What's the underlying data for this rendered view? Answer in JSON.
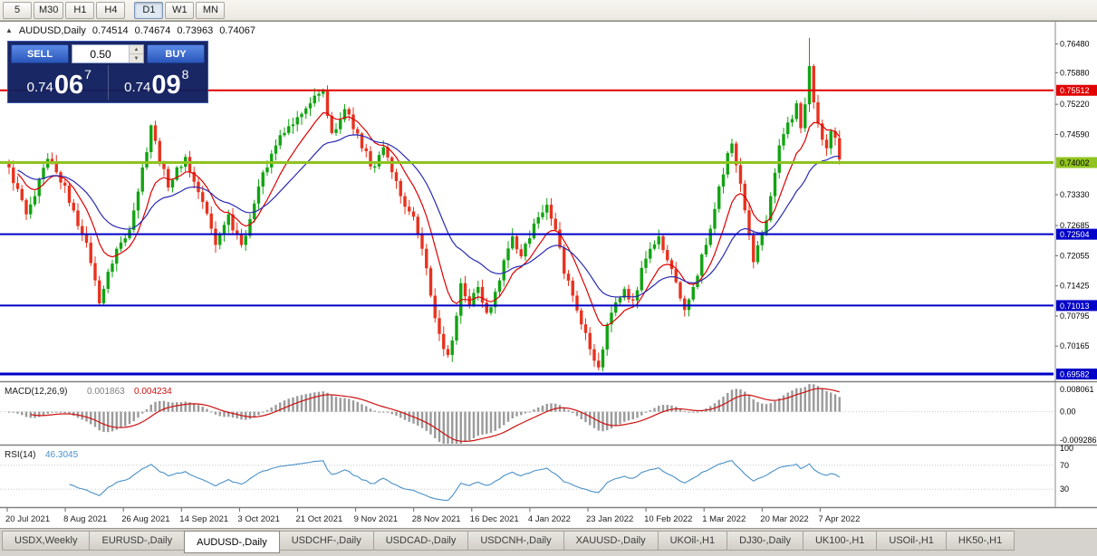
{
  "colors": {
    "up": "#12a312",
    "down": "#e8321e",
    "ma_fast": "#dd0000",
    "ma_slow": "#2a2ab4",
    "macd_hist": "#9a9a9a",
    "macd_signal": "#cc1111",
    "rsi": "#4a90c8",
    "axis_text": "#000000",
    "date_text": "#222222",
    "separator": "#828282",
    "level_dotted": "#c8c8c8"
  },
  "toolbar": {
    "timeframes": [
      "5",
      "M30",
      "H1",
      "H4",
      "D1",
      "W1",
      "MN"
    ],
    "active": "D1"
  },
  "chart_header": {
    "symbol": "AUDUSD,Daily",
    "open": "0.74514",
    "high": "0.74674",
    "low": "0.73963",
    "close": "0.74067"
  },
  "trade_panel": {
    "sell_label": "SELL",
    "buy_label": "BUY",
    "volume": "0.50",
    "sell_big": "0.74",
    "sell_mid": "06",
    "sell_sup": "7",
    "buy_big": "0.74",
    "buy_mid": "09",
    "buy_sup": "8"
  },
  "price_axis": {
    "ticks": [
      0.7648,
      0.7588,
      0.7522,
      0.7459,
      0.7333,
      0.72685,
      0.72055,
      0.71425,
      0.70795,
      0.70165
    ],
    "decimals": 5
  },
  "hlines": [
    {
      "price": 0.75512,
      "label": "0.75512",
      "color": "#e00000",
      "text_color": "#ffffff",
      "thickness": 2
    },
    {
      "price": 0.74002,
      "label": "0.74002",
      "color": "#8fc31f",
      "text_color": "#000000",
      "thickness": 3
    },
    {
      "price": 0.72504,
      "label": "0.72504",
      "color": "#0000c8",
      "text_color": "#ffffff",
      "thickness": 2
    },
    {
      "price": 0.71013,
      "label": "0.71013",
      "color": "#0000c8",
      "text_color": "#ffffff",
      "thickness": 2
    },
    {
      "price": 0.69582,
      "label": "0.69582",
      "color": "#0000c8",
      "text_color": "#ffffff",
      "thickness": 3
    }
  ],
  "chart_data": {
    "type": "candlestick",
    "symbol": "AUDUSD",
    "timeframe": "Daily",
    "n_bars": 194,
    "price_range": [
      0.6945,
      0.7687
    ],
    "ma_fast_period": 10,
    "ma_slow_period": 25,
    "close_anchors": [
      [
        0,
        0.739
      ],
      [
        2,
        0.7345
      ],
      [
        4,
        0.7292
      ],
      [
        6,
        0.733
      ],
      [
        9,
        0.7408
      ],
      [
        11,
        0.738
      ],
      [
        13,
        0.7352
      ],
      [
        15,
        0.73
      ],
      [
        17,
        0.7252
      ],
      [
        19,
        0.719
      ],
      [
        21,
        0.7106
      ],
      [
        23,
        0.7172
      ],
      [
        25,
        0.722
      ],
      [
        27,
        0.7242
      ],
      [
        29,
        0.73
      ],
      [
        31,
        0.739
      ],
      [
        33,
        0.7478
      ],
      [
        35,
        0.74
      ],
      [
        37,
        0.7348
      ],
      [
        39,
        0.739
      ],
      [
        41,
        0.7412
      ],
      [
        43,
        0.736
      ],
      [
        45,
        0.7318
      ],
      [
        47,
        0.7262
      ],
      [
        48,
        0.7228
      ],
      [
        50,
        0.727
      ],
      [
        51,
        0.7292
      ],
      [
        53,
        0.725
      ],
      [
        54,
        0.7228
      ],
      [
        56,
        0.7282
      ],
      [
        58,
        0.735
      ],
      [
        60,
        0.739
      ],
      [
        62,
        0.7436
      ],
      [
        64,
        0.7462
      ],
      [
        66,
        0.748
      ],
      [
        68,
        0.7502
      ],
      [
        70,
        0.7524
      ],
      [
        72,
        0.7544
      ],
      [
        73,
        0.755
      ],
      [
        74,
        0.7498
      ],
      [
        75,
        0.7462
      ],
      [
        77,
        0.749
      ],
      [
        78,
        0.7512
      ],
      [
        80,
        0.747
      ],
      [
        82,
        0.743
      ],
      [
        84,
        0.7392
      ],
      [
        86,
        0.7416
      ],
      [
        87,
        0.7432
      ],
      [
        89,
        0.738
      ],
      [
        91,
        0.733
      ],
      [
        93,
        0.7298
      ],
      [
        95,
        0.7252
      ],
      [
        96,
        0.722
      ],
      [
        98,
        0.7122
      ],
      [
        100,
        0.7042
      ],
      [
        102,
        0.6998
      ],
      [
        104,
        0.708
      ],
      [
        105,
        0.7148
      ],
      [
        107,
        0.7102
      ],
      [
        109,
        0.714
      ],
      [
        111,
        0.7086
      ],
      [
        113,
        0.713
      ],
      [
        115,
        0.7196
      ],
      [
        117,
        0.7246
      ],
      [
        119,
        0.7204
      ],
      [
        121,
        0.7242
      ],
      [
        123,
        0.7286
      ],
      [
        125,
        0.7312
      ],
      [
        127,
        0.726
      ],
      [
        129,
        0.7168
      ],
      [
        131,
        0.7122
      ],
      [
        133,
        0.7062
      ],
      [
        135,
        0.701
      ],
      [
        137,
        0.6972
      ],
      [
        139,
        0.7062
      ],
      [
        141,
        0.7108
      ],
      [
        143,
        0.7136
      ],
      [
        145,
        0.7112
      ],
      [
        147,
        0.718
      ],
      [
        149,
        0.722
      ],
      [
        151,
        0.7246
      ],
      [
        153,
        0.7196
      ],
      [
        155,
        0.715
      ],
      [
        157,
        0.7092
      ],
      [
        159,
        0.714
      ],
      [
        161,
        0.7208
      ],
      [
        163,
        0.7262
      ],
      [
        165,
        0.735
      ],
      [
        167,
        0.742
      ],
      [
        168,
        0.744
      ],
      [
        170,
        0.7356
      ],
      [
        172,
        0.7248
      ],
      [
        173,
        0.7192
      ],
      [
        175,
        0.725
      ],
      [
        177,
        0.733
      ],
      [
        179,
        0.7436
      ],
      [
        181,
        0.7484
      ],
      [
        183,
        0.7524
      ],
      [
        184,
        0.7472
      ],
      [
        185,
        0.7522
      ],
      [
        186,
        0.7602
      ],
      [
        187,
        0.7526
      ],
      [
        188,
        0.7482
      ],
      [
        189,
        0.7448
      ],
      [
        190,
        0.743
      ],
      [
        191,
        0.7466
      ],
      [
        192,
        0.7452
      ],
      [
        193,
        0.74067
      ]
    ],
    "wick_overrides": [
      [
        21,
        "low",
        0.71
      ],
      [
        33,
        "high",
        0.748
      ],
      [
        73,
        "high",
        0.7555
      ],
      [
        102,
        "low",
        0.6992
      ],
      [
        137,
        "low",
        0.6966
      ],
      [
        186,
        "high",
        0.7661
      ]
    ],
    "last_candle": {
      "open": 0.74514,
      "high": 0.74674,
      "low": 0.73963,
      "close": 0.74067
    }
  },
  "macd": {
    "name": "MACD(12,26,9)",
    "value_main": "0.001863",
    "value_signal": "0.004234",
    "axis_top": "0.008061",
    "axis_mid": "0.00",
    "axis_bottom": "-0.009286",
    "range": [
      -0.009286,
      0.008061
    ],
    "params": [
      12,
      26,
      9
    ]
  },
  "rsi": {
    "name": "RSI(14)",
    "value": "46.3045",
    "axis": [
      "100",
      "70",
      "30"
    ],
    "levels": [
      70,
      30
    ],
    "period": 14,
    "range": [
      0,
      100
    ]
  },
  "dates": [
    "20 Jul 2021",
    "8 Aug 2021",
    "26 Aug 2021",
    "14 Sep 2021",
    "3 Oct 2021",
    "21 Oct 2021",
    "9 Nov 2021",
    "28 Nov 2021",
    "16 Dec 2021",
    "4 Jan 2022",
    "23 Jan 2022",
    "10 Feb 2022",
    "1 Mar 2022",
    "20 Mar 2022",
    "7 Apr 2022"
  ],
  "tabs": {
    "items": [
      "USDX,Weekly",
      "EURUSD-,Daily",
      "AUDUSD-,Daily",
      "USDCHF-,Daily",
      "USDCAD-,Daily",
      "USDCNH-,Daily",
      "XAUUSD-,Daily",
      "UKOil-,H1",
      "DJ30-,Daily",
      "UK100-,H1",
      "USOil-,H1",
      "HK50-,H1"
    ],
    "active_index": 2
  }
}
